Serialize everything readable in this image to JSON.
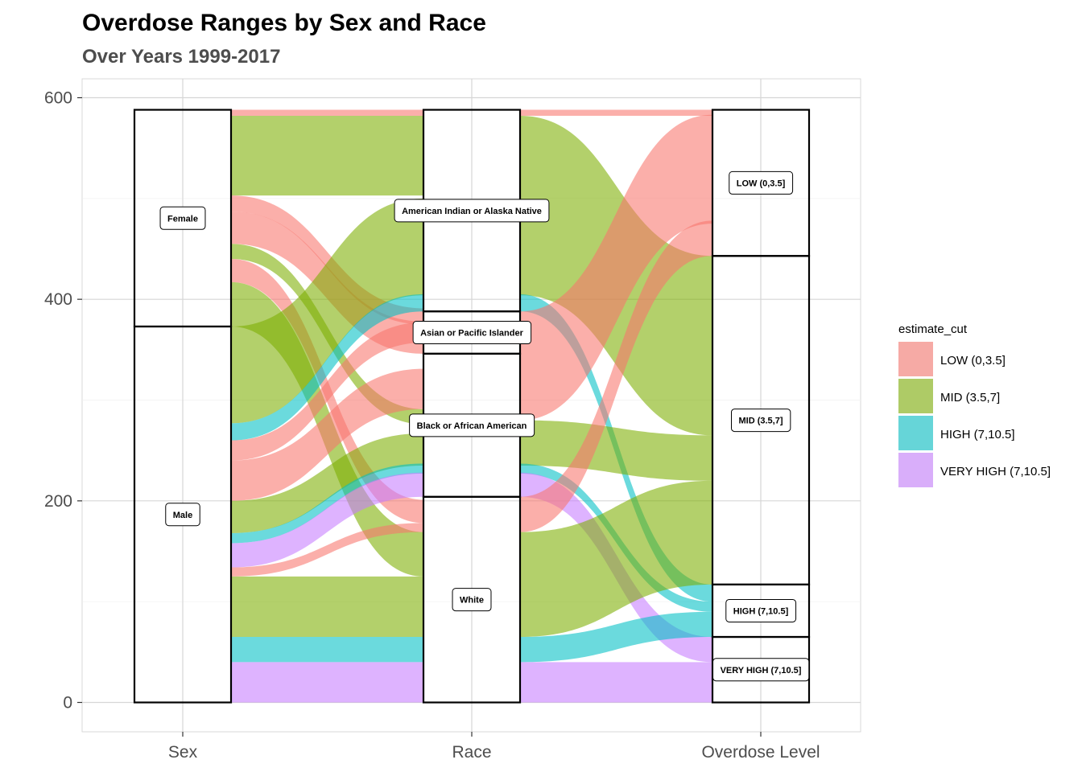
{
  "chart_data": {
    "type": "alluvial",
    "title": "Overdose Ranges by Sex and Race",
    "subtitle": "Over Years 1999-2017",
    "axes": [
      "Sex",
      "Race",
      "Overdose Level"
    ],
    "yticks": [
      0,
      200,
      400,
      600
    ],
    "ylim": [
      -30,
      620
    ],
    "grid": true,
    "legend_title": "estimate_cut",
    "legend_position": "right",
    "fill_levels": [
      {
        "name": "LOW (0,3.5]",
        "color": "#F8766D"
      },
      {
        "name": "MID (3.5,7]",
        "color": "#7CAE00"
      },
      {
        "name": "HIGH (7,10.5]",
        "color": "#00BFC4"
      },
      {
        "name": "VERY HIGH (7,10.5]",
        "color": "#C77CFF"
      }
    ],
    "strata": [
      {
        "axis": 0,
        "label": "Female",
        "ymin": 373,
        "ymax": 588
      },
      {
        "axis": 0,
        "label": "Male",
        "ymin": 0,
        "ymax": 373
      },
      {
        "axis": 1,
        "label": "American Indian or Alaska Native",
        "ymin": 388,
        "ymax": 588
      },
      {
        "axis": 1,
        "label": "Asian or Pacific Islander",
        "ymin": 346,
        "ymax": 388
      },
      {
        "axis": 1,
        "label": "Black or African American",
        "ymin": 204,
        "ymax": 346
      },
      {
        "axis": 1,
        "label": "White",
        "ymin": 0,
        "ymax": 204
      },
      {
        "axis": 2,
        "label": "LOW (0,3.5]",
        "ymin": 443,
        "ymax": 588
      },
      {
        "axis": 2,
        "label": "MID (3.5,7]",
        "ymin": 117,
        "ymax": 443
      },
      {
        "axis": 2,
        "label": "HIGH (7,10.5]",
        "ymin": 65,
        "ymax": 117
      },
      {
        "axis": 2,
        "label": "VERY HIGH (7,10.5]",
        "ymin": 0,
        "ymax": 65
      }
    ],
    "flows_sex_race": [
      {
        "fill": 0,
        "from": [
          582,
          588
        ],
        "to": [
          582,
          588
        ]
      },
      {
        "fill": 1,
        "from": [
          503,
          582
        ],
        "to": [
          503,
          582
        ]
      },
      {
        "fill": 0,
        "from": [
          487,
          503
        ],
        "to": [
          375,
          391
        ]
      },
      {
        "fill": 0,
        "from": [
          455,
          487
        ],
        "to": [
          346,
          378
        ]
      },
      {
        "fill": 1,
        "from": [
          440,
          455
        ],
        "to": [
          276,
          291
        ]
      },
      {
        "fill": 0,
        "from": [
          417,
          440
        ],
        "to": [
          178,
          201
        ]
      },
      {
        "fill": 1,
        "from": [
          373,
          417
        ],
        "to": [
          125,
          169
        ]
      },
      {
        "fill": 1,
        "from": [
          277,
          373
        ],
        "to": [
          404,
          500
        ]
      },
      {
        "fill": 2,
        "from": [
          260,
          277
        ],
        "to": [
          388,
          405
        ]
      },
      {
        "fill": 0,
        "from": [
          240,
          260
        ],
        "to": [
          357,
          377
        ]
      },
      {
        "fill": 0,
        "from": [
          200,
          240
        ],
        "to": [
          291,
          331
        ]
      },
      {
        "fill": 1,
        "from": [
          168,
          200
        ],
        "to": [
          235,
          267
        ]
      },
      {
        "fill": 2,
        "from": [
          158,
          168
        ],
        "to": [
          227,
          237
        ]
      },
      {
        "fill": 3,
        "from": [
          134,
          158
        ],
        "to": [
          204,
          228
        ]
      },
      {
        "fill": 0,
        "from": [
          125,
          134
        ],
        "to": [
          169,
          178
        ]
      },
      {
        "fill": 1,
        "from": [
          65,
          125
        ],
        "to": [
          65,
          125
        ]
      },
      {
        "fill": 2,
        "from": [
          40,
          65
        ],
        "to": [
          40,
          65
        ]
      },
      {
        "fill": 3,
        "from": [
          0,
          40
        ],
        "to": [
          0,
          40
        ]
      }
    ],
    "flows_race_level": [
      {
        "fill": 0,
        "from": [
          582,
          588
        ],
        "to": [
          582,
          588
        ]
      },
      {
        "fill": 1,
        "from": [
          404,
          582
        ],
        "to": [
          265,
          443
        ]
      },
      {
        "fill": 2,
        "from": [
          388,
          405
        ],
        "to": [
          100,
          117
        ]
      },
      {
        "fill": 0,
        "from": [
          280,
          388
        ],
        "to": [
          475,
          583
        ]
      },
      {
        "fill": 1,
        "from": [
          235,
          280
        ],
        "to": [
          220,
          265
        ]
      },
      {
        "fill": 2,
        "from": [
          227,
          237
        ],
        "to": [
          90,
          100
        ]
      },
      {
        "fill": 3,
        "from": [
          204,
          228
        ],
        "to": [
          40,
          65
        ]
      },
      {
        "fill": 0,
        "from": [
          169,
          204
        ],
        "to": [
          443,
          478
        ]
      },
      {
        "fill": 1,
        "from": [
          65,
          169
        ],
        "to": [
          117,
          220
        ]
      },
      {
        "fill": 2,
        "from": [
          40,
          65
        ],
        "to": [
          65,
          90
        ]
      },
      {
        "fill": 3,
        "from": [
          0,
          40
        ],
        "to": [
          0,
          40
        ]
      }
    ]
  }
}
